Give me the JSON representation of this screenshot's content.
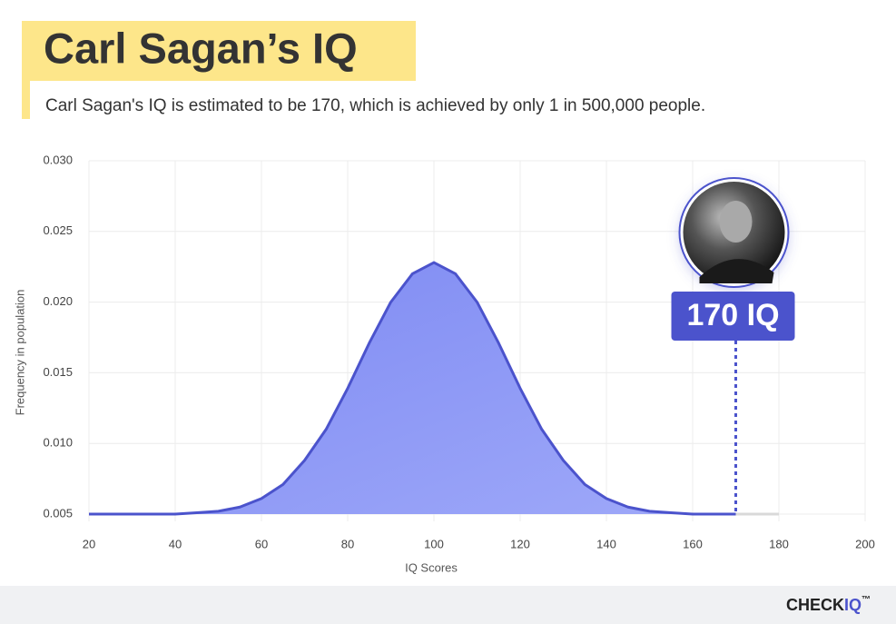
{
  "chart_data": {
    "type": "area",
    "title": "Carl Sagan’s IQ",
    "subtitle": "Carl Sagan's IQ is estimated to be 170, which is achieved by only 1 in 500,000 people.",
    "x_label": "IQ Scores",
    "y_label": "Frequency in population",
    "x": [
      20,
      25,
      30,
      35,
      40,
      45,
      50,
      55,
      60,
      65,
      70,
      75,
      80,
      85,
      90,
      95,
      100,
      105,
      110,
      115,
      120,
      125,
      130,
      135,
      140,
      145,
      150,
      155,
      160,
      165,
      170,
      175,
      180
    ],
    "values": [
      0.005,
      0.005,
      0.005,
      0.005,
      0.005,
      0.0051,
      0.0052,
      0.0055,
      0.0061,
      0.0071,
      0.0088,
      0.011,
      0.0139,
      0.0171,
      0.02,
      0.022,
      0.0228,
      0.022,
      0.02,
      0.0171,
      0.0139,
      0.011,
      0.0088,
      0.0071,
      0.0061,
      0.0055,
      0.0052,
      0.0051,
      0.005,
      0.005,
      0.005,
      0.005,
      0.005
    ],
    "color": "#4b53cc",
    "fill": "#8e9af7",
    "tail_color": "#d9d9d9",
    "xlim": [
      20,
      200
    ],
    "ylim": [
      0.005,
      0.03
    ],
    "xticks": [
      20,
      40,
      60,
      80,
      100,
      120,
      140,
      160,
      180,
      200
    ],
    "yticks": [
      0.005,
      {
        "value": 0.01,
        "label": "0.010"
      },
      0.015,
      {
        "value": 0.02,
        "label": "0.020"
      },
      0.025,
      {
        "value": 0.03,
        "label": "0.030"
      }
    ],
    "grid": true,
    "marker": {
      "x": 170,
      "label": "170 IQ"
    }
  },
  "brand": {
    "name": "CHECK",
    "accent": "IQ",
    "mark": "™"
  }
}
